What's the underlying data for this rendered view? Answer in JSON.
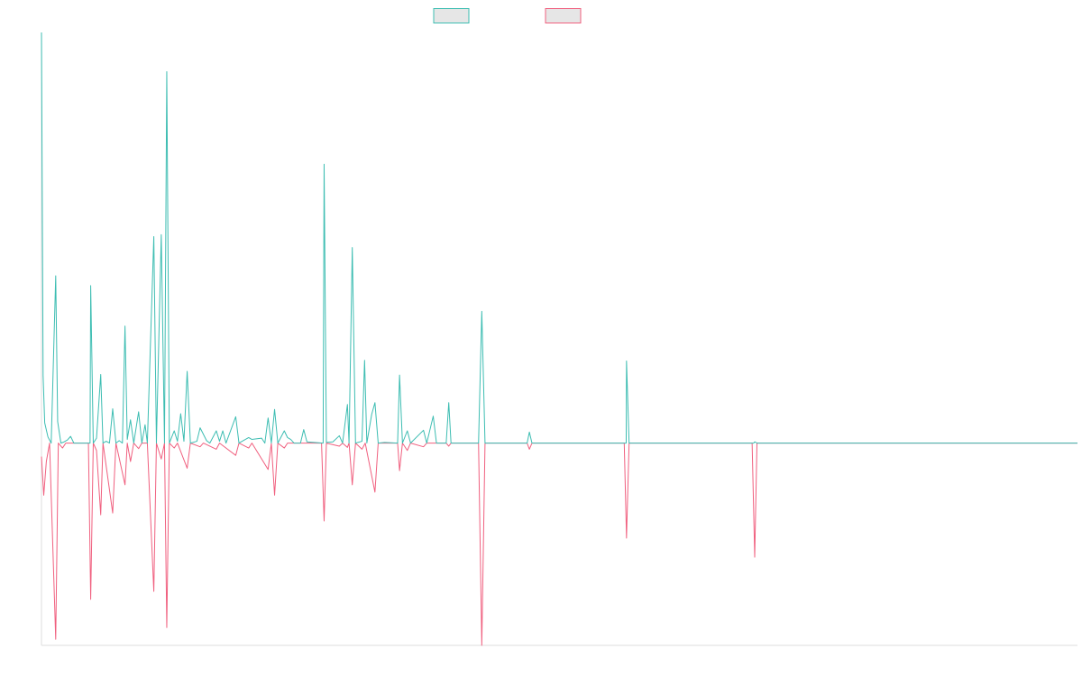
{
  "chart_data": {
    "type": "line",
    "title": "",
    "xlabel": "",
    "ylabel": "",
    "grid": false,
    "legend_position": "top-center",
    "x_range": [
      0,
      320
    ],
    "y_range": [
      -0.33,
      0.67
    ],
    "colors": {
      "series_a": "#3dbdb2",
      "series_b": "#f0607f",
      "legend_fill": "#e6e6e6",
      "axis": "#dddddd"
    },
    "series": [
      {
        "name": "",
        "color": "#3dbdb2",
        "points": [
          [
            0,
            0.67
          ],
          [
            0.5,
            0.11
          ],
          [
            1,
            0.033
          ],
          [
            2,
            0.01
          ],
          [
            3,
            0.0
          ],
          [
            4.4,
            0.273
          ],
          [
            5,
            0.035
          ],
          [
            6,
            0.0
          ],
          [
            7,
            0.002
          ],
          [
            8,
            0.005
          ],
          [
            9,
            0.011
          ],
          [
            10,
            0.0
          ],
          [
            14,
            0.0
          ],
          [
            15,
            0.0
          ],
          [
            15.2,
            0.257
          ],
          [
            16,
            0.0
          ],
          [
            17,
            0.008
          ],
          [
            18.3,
            0.112
          ],
          [
            19,
            0.0
          ],
          [
            20,
            0.003
          ],
          [
            21,
            0.0
          ],
          [
            22,
            0.056
          ],
          [
            23,
            0.0
          ],
          [
            24,
            0.004
          ],
          [
            25,
            0.0
          ],
          [
            25.8,
            0.191
          ],
          [
            26.5,
            0.006
          ],
          [
            27.5,
            0.038
          ],
          [
            28.5,
            0.0
          ],
          [
            30,
            0.051
          ],
          [
            31,
            0.0
          ],
          [
            32,
            0.03
          ],
          [
            32.7,
            0.0
          ],
          [
            34.7,
            0.337
          ],
          [
            35.5,
            0.0
          ],
          [
            37,
            0.34
          ],
          [
            38,
            0.0
          ],
          [
            38.7,
            0.606
          ],
          [
            39.5,
            0.0
          ],
          [
            41,
            0.02
          ],
          [
            42,
            0.003
          ],
          [
            43,
            0.048
          ],
          [
            44,
            0.003
          ],
          [
            45,
            0.117
          ],
          [
            46,
            0.0
          ],
          [
            48,
            0.003
          ],
          [
            49,
            0.025
          ],
          [
            51,
            0.004
          ],
          [
            52,
            0.0
          ],
          [
            54,
            0.02
          ],
          [
            55,
            0.003
          ],
          [
            56,
            0.02
          ],
          [
            57,
            0.0
          ],
          [
            60,
            0.043
          ],
          [
            61,
            0.0
          ],
          [
            64,
            0.009
          ],
          [
            65,
            0.006
          ],
          [
            68,
            0.008
          ],
          [
            69,
            0.0
          ],
          [
            70,
            0.041
          ],
          [
            71,
            0.0
          ],
          [
            72,
            0.055
          ],
          [
            73,
            0.0
          ],
          [
            75,
            0.02
          ],
          [
            76,
            0.009
          ],
          [
            77,
            0.006
          ],
          [
            78,
            0.0
          ],
          [
            80,
            0.0
          ],
          [
            81,
            0.022
          ],
          [
            82,
            0.002
          ],
          [
            87,
            0.0
          ],
          [
            87.3,
            0.455
          ],
          [
            88,
            0.001
          ],
          [
            90,
            0.002
          ],
          [
            92,
            0.012
          ],
          [
            93,
            0.0
          ],
          [
            94.5,
            0.063
          ],
          [
            95,
            0.0
          ],
          [
            96,
            0.319
          ],
          [
            97,
            0.0
          ],
          [
            99,
            0.003
          ],
          [
            99.8,
            0.135
          ],
          [
            100.5,
            0.0
          ],
          [
            102,
            0.047
          ],
          [
            103,
            0.066
          ],
          [
            104,
            0.0
          ],
          [
            106,
            0.001
          ],
          [
            110,
            0.0
          ],
          [
            110.6,
            0.111
          ],
          [
            111.5,
            0.0
          ],
          [
            113,
            0.02
          ],
          [
            114,
            0.0
          ],
          [
            118,
            0.021
          ],
          [
            119,
            0.0
          ],
          [
            121,
            0.044
          ],
          [
            122,
            0.0
          ],
          [
            125,
            0.0
          ],
          [
            125.8,
            0.066
          ],
          [
            126.5,
            0.0
          ],
          [
            135,
            0.0
          ],
          [
            136,
            0.215
          ],
          [
            137,
            0.0
          ],
          [
            150,
            0.0
          ],
          [
            150.7,
            0.018
          ],
          [
            151.5,
            0.0
          ],
          [
            185,
            0.0
          ],
          [
            180.6,
            0.0
          ],
          [
            180.7,
            0.134
          ],
          [
            181.5,
            0.0
          ],
          [
            220,
            0.0
          ],
          [
            220.3,
            0.002
          ],
          [
            221,
            0.0
          ],
          [
            320,
            0.0
          ]
        ]
      },
      {
        "name": "",
        "color": "#f0607f",
        "points": [
          [
            0,
            -0.022
          ],
          [
            0.7,
            -0.085
          ],
          [
            1.5,
            -0.03
          ],
          [
            2.5,
            0.0
          ],
          [
            4.4,
            -0.32
          ],
          [
            5.2,
            0.0
          ],
          [
            6.5,
            -0.008
          ],
          [
            7.5,
            0.0
          ],
          [
            14.5,
            0.0
          ],
          [
            15.2,
            -0.255
          ],
          [
            16,
            0.0
          ],
          [
            17,
            -0.012
          ],
          [
            18.3,
            -0.117
          ],
          [
            19,
            0.0
          ],
          [
            22,
            -0.114
          ],
          [
            23,
            0.0
          ],
          [
            25.8,
            -0.068
          ],
          [
            26.5,
            0.0
          ],
          [
            27.5,
            -0.03
          ],
          [
            28.5,
            0.0
          ],
          [
            30,
            -0.009
          ],
          [
            31,
            0.0
          ],
          [
            32.7,
            0.0
          ],
          [
            34.7,
            -0.242
          ],
          [
            35.5,
            0.0
          ],
          [
            37,
            -0.026
          ],
          [
            38,
            0.0
          ],
          [
            38.7,
            -0.301
          ],
          [
            39.5,
            0.0
          ],
          [
            41,
            -0.008
          ],
          [
            42,
            0.0
          ],
          [
            45,
            -0.041
          ],
          [
            46,
            0.0
          ],
          [
            49,
            -0.006
          ],
          [
            50,
            0.0
          ],
          [
            54,
            -0.01
          ],
          [
            55,
            0.0
          ],
          [
            60,
            -0.02
          ],
          [
            61,
            0.0
          ],
          [
            64,
            -0.008
          ],
          [
            65,
            0.0
          ],
          [
            70,
            -0.043
          ],
          [
            71,
            0.0
          ],
          [
            72,
            -0.085
          ],
          [
            73,
            0.0
          ],
          [
            75,
            -0.008
          ],
          [
            76,
            0.0
          ],
          [
            86.5,
            0.0
          ],
          [
            87.3,
            -0.127
          ],
          [
            88,
            0.0
          ],
          [
            92,
            -0.005
          ],
          [
            93,
            0.0
          ],
          [
            94.5,
            -0.007
          ],
          [
            95,
            0.0
          ],
          [
            96,
            -0.068
          ],
          [
            97,
            0.0
          ],
          [
            99,
            -0.01
          ],
          [
            100,
            0.0
          ],
          [
            103,
            -0.08
          ],
          [
            104,
            0.0
          ],
          [
            110,
            0.0
          ],
          [
            110.6,
            -0.045
          ],
          [
            111.5,
            0.0
          ],
          [
            113,
            -0.012
          ],
          [
            114,
            0.0
          ],
          [
            118,
            -0.006
          ],
          [
            119,
            0.0
          ],
          [
            125,
            0.0
          ],
          [
            125.8,
            -0.005
          ],
          [
            126.5,
            0.0
          ],
          [
            135,
            0.0
          ],
          [
            136,
            -0.33
          ],
          [
            137,
            0.0
          ],
          [
            150,
            0.0
          ],
          [
            150.7,
            -0.01
          ],
          [
            151.5,
            0.0
          ],
          [
            180,
            0.0
          ],
          [
            180.7,
            -0.155
          ],
          [
            181.5,
            0.0
          ],
          [
            219.5,
            0.0
          ],
          [
            220.3,
            -0.186
          ],
          [
            221,
            0.0
          ],
          [
            320,
            0.0
          ]
        ]
      }
    ]
  }
}
